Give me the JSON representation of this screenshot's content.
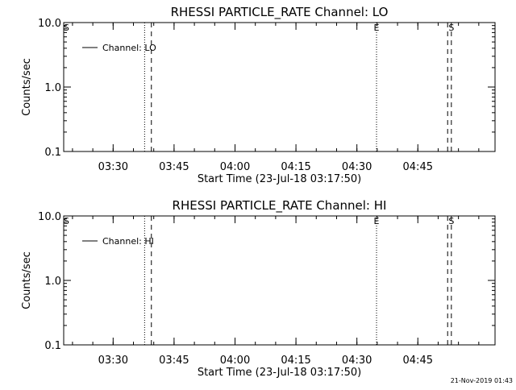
{
  "footer_timestamp": "21-Nov-2019 01:43",
  "chart_data": [
    {
      "type": "line",
      "title": "RHESSI PARTICLE_RATE Channel: LO",
      "xlabel": "Start Time (23-Jul-18 03:17:50)",
      "ylabel": "Counts/sec",
      "y_scale": "log",
      "ylim": [
        0.1,
        10.0
      ],
      "yticks": [
        "0.1",
        "1.0",
        "10.0"
      ],
      "xlim": [
        "03:17:50",
        "05:04:00"
      ],
      "xticks": [
        "03:30",
        "03:45",
        "04:00",
        "04:15",
        "04:30",
        "04:45"
      ],
      "grid": false,
      "legend": {
        "position": "top-left",
        "entries": [
          "Channel: LO"
        ]
      },
      "series": [
        {
          "name": "Channel: LO",
          "values": []
        }
      ],
      "markers": [
        {
          "time": "03:18:30",
          "label": "S",
          "style": "none"
        },
        {
          "time": "03:37:45",
          "label": "",
          "style": "dotted"
        },
        {
          "time": "03:39:25",
          "label": "",
          "style": "dashed"
        },
        {
          "time": "04:34:50",
          "label": "E",
          "style": "dotted"
        },
        {
          "time": "04:52:20",
          "label": "",
          "style": "dashed"
        },
        {
          "time": "04:53:15",
          "label": "S",
          "style": "dashed"
        }
      ]
    },
    {
      "type": "line",
      "title": "RHESSI PARTICLE_RATE Channel: HI",
      "xlabel": "Start Time (23-Jul-18 03:17:50)",
      "ylabel": "Counts/sec",
      "y_scale": "log",
      "ylim": [
        0.1,
        10.0
      ],
      "yticks": [
        "0.1",
        "1.0",
        "10.0"
      ],
      "xlim": [
        "03:17:50",
        "05:04:00"
      ],
      "xticks": [
        "03:30",
        "03:45",
        "04:00",
        "04:15",
        "04:30",
        "04:45"
      ],
      "grid": false,
      "legend": {
        "position": "top-left",
        "entries": [
          "Channel: HI"
        ]
      },
      "series": [
        {
          "name": "Channel: HI",
          "values": []
        }
      ],
      "markers": [
        {
          "time": "03:18:30",
          "label": "S",
          "style": "none"
        },
        {
          "time": "03:37:45",
          "label": "",
          "style": "dotted"
        },
        {
          "time": "03:39:25",
          "label": "",
          "style": "dashed"
        },
        {
          "time": "04:34:50",
          "label": "E",
          "style": "dotted"
        },
        {
          "time": "04:52:20",
          "label": "",
          "style": "dashed"
        },
        {
          "time": "04:53:15",
          "label": "S",
          "style": "dashed"
        }
      ]
    }
  ]
}
